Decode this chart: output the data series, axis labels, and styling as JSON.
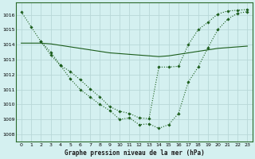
{
  "title": "Graphe pression niveau de la mer (hPa)",
  "background_color": "#d4f0f0",
  "grid_color": "#b8d8d8",
  "line_color": "#1a5c1a",
  "xlim": [
    -0.5,
    23.5
  ],
  "ylim": [
    1007.5,
    1016.8
  ],
  "yticks": [
    1008,
    1009,
    1010,
    1011,
    1012,
    1013,
    1014,
    1015,
    1016
  ],
  "xticks": [
    0,
    1,
    2,
    3,
    4,
    5,
    6,
    7,
    8,
    9,
    10,
    11,
    12,
    13,
    14,
    15,
    16,
    17,
    18,
    19,
    20,
    21,
    22,
    23
  ],
  "series1_x": [
    0,
    1,
    2,
    3,
    4,
    5,
    6,
    7,
    8,
    9,
    10,
    11,
    12,
    13,
    14,
    15,
    16,
    17,
    18,
    19,
    20,
    21,
    22,
    23
  ],
  "series1_y": [
    1016.2,
    1015.2,
    1014.2,
    1013.5,
    1012.6,
    1011.7,
    1011.0,
    1010.5,
    1010.0,
    1009.6,
    1009.0,
    1009.1,
    1008.65,
    1008.7,
    1008.4,
    1008.65,
    1009.4,
    1011.5,
    1012.5,
    1013.8,
    1015.0,
    1015.7,
    1016.1,
    1016.2
  ],
  "series2_x": [
    0,
    1,
    2,
    3,
    4,
    5,
    6,
    7,
    8,
    9,
    10,
    11,
    12,
    13,
    14,
    15,
    16,
    17,
    18,
    19,
    20,
    21,
    22,
    23
  ],
  "series2_y": [
    1014.1,
    1014.1,
    1014.1,
    1014.05,
    1013.95,
    1013.85,
    1013.75,
    1013.65,
    1013.55,
    1013.45,
    1013.4,
    1013.35,
    1013.3,
    1013.25,
    1013.2,
    1013.25,
    1013.35,
    1013.45,
    1013.55,
    1013.65,
    1013.75,
    1013.8,
    1013.85,
    1013.9
  ],
  "series3_x": [
    2,
    3,
    4,
    5,
    6,
    7,
    8,
    9,
    10,
    11,
    12,
    13,
    14,
    15,
    16,
    17,
    18,
    19,
    20,
    21,
    22,
    23
  ],
  "series3_y": [
    1014.2,
    1013.3,
    1012.6,
    1012.2,
    1011.65,
    1011.05,
    1010.5,
    1009.85,
    1009.55,
    1009.4,
    1009.1,
    1009.05,
    1012.5,
    1012.5,
    1012.55,
    1014.0,
    1015.0,
    1015.5,
    1016.05,
    1016.25,
    1016.3,
    1016.35
  ]
}
